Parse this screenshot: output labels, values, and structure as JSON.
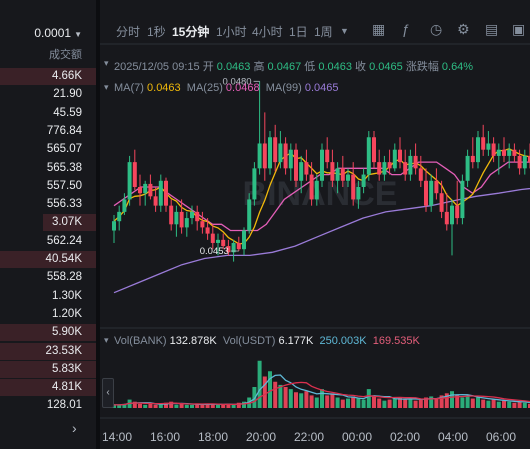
{
  "depth": {
    "precision": "0.0001",
    "volume_header": "成交额",
    "rows": [
      {
        "value": "4.66K",
        "bar": 1.0
      },
      {
        "value": "21.90",
        "bar": 0
      },
      {
        "value": "45.59",
        "bar": 0
      },
      {
        "value": "776.84",
        "bar": 0
      },
      {
        "value": "565.07",
        "bar": 0
      },
      {
        "value": "565.38",
        "bar": 0
      },
      {
        "value": "557.50",
        "bar": 0
      },
      {
        "value": "556.33",
        "bar": 0
      },
      {
        "value": "3.07K",
        "bar": 0.55
      },
      {
        "value": "562.24",
        "bar": 0
      },
      {
        "value": "40.54K",
        "bar": 1.0
      },
      {
        "value": "558.28",
        "bar": 0
      },
      {
        "value": "1.30K",
        "bar": 0
      },
      {
        "value": "1.20K",
        "bar": 0
      },
      {
        "value": "5.90K",
        "bar": 1.0
      },
      {
        "value": "23.53K",
        "bar": 1.0
      },
      {
        "value": "5.83K",
        "bar": 1.0
      },
      {
        "value": "4.81K",
        "bar": 1.0
      },
      {
        "value": "128.01",
        "bar": 0
      }
    ]
  },
  "toolbar": {
    "timeframes": [
      "分时",
      "1秒",
      "15分钟",
      "1小时",
      "4小时",
      "1日",
      "1周"
    ],
    "active": "15分钟",
    "icons": [
      "calendar-icon",
      "indicator-icon",
      "clock-icon",
      "settings-icon",
      "template-icon",
      "layout-icon",
      "fullscreen-icon"
    ]
  },
  "ohlc": {
    "date": "2025/12/05 09:15",
    "open_label": "开",
    "open": "0.0463",
    "high_label": "高",
    "high": "0.0467",
    "low_label": "低",
    "low": "0.0463",
    "close_label": "收",
    "close": "0.0465",
    "change_label": "涨跌幅",
    "change": "0.64%"
  },
  "ma": {
    "ma7_label": "MA(7)",
    "ma7": "0.0463",
    "ma25_label": "MA(25)",
    "ma25": "0.0468",
    "ma99_label": "MA(99)",
    "ma99": "0.0465"
  },
  "volume_info": {
    "bank_label": "Vol(BANK)",
    "bank": "132.878K",
    "usdt_label": "Vol(USDT)",
    "usdt": "6.177K",
    "ma1": "250.003K",
    "ma2": "169.535K"
  },
  "watermark": "BINANCE",
  "annotations": {
    "high_marker": "0.0480",
    "low_marker": "0.0453"
  },
  "time_axis": [
    "14:00",
    "16:00",
    "18:00",
    "20:00",
    "22:00",
    "00:00",
    "02:00",
    "04:00",
    "06:00"
  ],
  "colors": {
    "up": "#2ebd85",
    "down": "#f6465d",
    "ma7": "#f0b90b",
    "ma25": "#e35eb7",
    "ma99": "#9a7bd8",
    "vol_ma1": "#5fb8d6",
    "vol_ma2": "#d9304e"
  },
  "chart_data": {
    "type": "candlestick",
    "interval": "15m",
    "ylim": [
      0.044,
      0.0486
    ],
    "x_ticks": [
      "14:00",
      "16:00",
      "18:00",
      "20:00",
      "22:00",
      "00:00",
      "02:00",
      "04:00",
      "06:00"
    ],
    "candles": [
      [
        0.0456,
        0.04585,
        0.0454,
        0.04575,
        3
      ],
      [
        0.04575,
        0.046,
        0.0456,
        0.0459,
        3
      ],
      [
        0.0459,
        0.0462,
        0.04585,
        0.0461,
        4
      ],
      [
        0.0461,
        0.0468,
        0.046,
        0.0467,
        8
      ],
      [
        0.0467,
        0.0469,
        0.04625,
        0.0463,
        6
      ],
      [
        0.0463,
        0.0465,
        0.046,
        0.0462,
        4
      ],
      [
        0.0462,
        0.0464,
        0.046,
        0.04635,
        3
      ],
      [
        0.04635,
        0.0465,
        0.0461,
        0.04615,
        4
      ],
      [
        0.04615,
        0.0463,
        0.0459,
        0.046,
        3
      ],
      [
        0.046,
        0.0465,
        0.0459,
        0.0464,
        4
      ],
      [
        0.0464,
        0.04645,
        0.0459,
        0.046,
        5
      ],
      [
        0.046,
        0.0461,
        0.0456,
        0.0457,
        6
      ],
      [
        0.0457,
        0.046,
        0.0455,
        0.0459,
        3
      ],
      [
        0.0459,
        0.0461,
        0.04555,
        0.04565,
        4
      ],
      [
        0.04565,
        0.0459,
        0.0455,
        0.0458,
        3
      ],
      [
        0.0458,
        0.046,
        0.0457,
        0.0459,
        3
      ],
      [
        0.0459,
        0.046,
        0.0456,
        0.04575,
        4
      ],
      [
        0.04575,
        0.0459,
        0.04555,
        0.04565,
        3
      ],
      [
        0.04565,
        0.0458,
        0.04545,
        0.04555,
        4
      ],
      [
        0.04555,
        0.0457,
        0.0453,
        0.0454,
        4
      ],
      [
        0.0454,
        0.04555,
        0.0452,
        0.04545,
        3
      ],
      [
        0.04545,
        0.04555,
        0.0453,
        0.04535,
        3
      ],
      [
        0.04535,
        0.04545,
        0.0452,
        0.04525,
        4
      ],
      [
        0.04525,
        0.04545,
        0.0451,
        0.0454,
        3
      ],
      [
        0.0454,
        0.0455,
        0.04527,
        0.0453,
        5
      ],
      [
        0.0453,
        0.04565,
        0.0452,
        0.0456,
        6
      ],
      [
        0.0456,
        0.0462,
        0.04555,
        0.0461,
        10
      ],
      [
        0.0461,
        0.0467,
        0.046,
        0.0466,
        20
      ],
      [
        0.0466,
        0.048,
        0.0465,
        0.047,
        45
      ],
      [
        0.047,
        0.0475,
        0.0464,
        0.0466,
        30
      ],
      [
        0.0466,
        0.0472,
        0.0465,
        0.0471,
        35
      ],
      [
        0.0471,
        0.0473,
        0.04655,
        0.0467,
        25
      ],
      [
        0.0467,
        0.0472,
        0.0466,
        0.047,
        22
      ],
      [
        0.047,
        0.0471,
        0.0465,
        0.0466,
        20
      ],
      [
        0.0466,
        0.047,
        0.0464,
        0.0469,
        18
      ],
      [
        0.0469,
        0.047,
        0.0463,
        0.0464,
        15
      ],
      [
        0.0464,
        0.0468,
        0.0462,
        0.0467,
        14
      ],
      [
        0.0467,
        0.0469,
        0.0464,
        0.0465,
        16
      ],
      [
        0.0465,
        0.0467,
        0.046,
        0.0461,
        12
      ],
      [
        0.0461,
        0.0465,
        0.046,
        0.0464,
        10
      ],
      [
        0.0464,
        0.047,
        0.0463,
        0.0469,
        18
      ],
      [
        0.0469,
        0.0471,
        0.0466,
        0.0467,
        12
      ],
      [
        0.0467,
        0.0469,
        0.0463,
        0.0464,
        14
      ],
      [
        0.0464,
        0.0467,
        0.0462,
        0.0466,
        10
      ],
      [
        0.0466,
        0.0468,
        0.0463,
        0.0464,
        8
      ],
      [
        0.0464,
        0.0466,
        0.0463,
        0.0465,
        9
      ],
      [
        0.0465,
        0.0467,
        0.046,
        0.0461,
        11
      ],
      [
        0.0461,
        0.0464,
        0.04595,
        0.0463,
        9
      ],
      [
        0.0463,
        0.0466,
        0.0462,
        0.0465,
        8
      ],
      [
        0.0465,
        0.0472,
        0.0464,
        0.0471,
        18
      ],
      [
        0.0471,
        0.0472,
        0.0466,
        0.0467,
        12
      ],
      [
        0.0467,
        0.0469,
        0.0464,
        0.0465,
        9
      ],
      [
        0.0465,
        0.0468,
        0.0464,
        0.0467,
        7
      ],
      [
        0.0467,
        0.0469,
        0.0465,
        0.0466,
        8
      ],
      [
        0.0466,
        0.047,
        0.04655,
        0.0469,
        9
      ],
      [
        0.0469,
        0.0471,
        0.0466,
        0.0467,
        10
      ],
      [
        0.0467,
        0.0469,
        0.0464,
        0.0465,
        8
      ],
      [
        0.0465,
        0.0469,
        0.0464,
        0.0468,
        9
      ],
      [
        0.0468,
        0.047,
        0.0465,
        0.0466,
        7
      ],
      [
        0.0466,
        0.0468,
        0.0463,
        0.0464,
        8
      ],
      [
        0.0464,
        0.0466,
        0.0459,
        0.046,
        10
      ],
      [
        0.046,
        0.0465,
        0.0459,
        0.0464,
        11
      ],
      [
        0.0464,
        0.0466,
        0.0461,
        0.0462,
        9
      ],
      [
        0.0462,
        0.0464,
        0.0458,
        0.0459,
        12
      ],
      [
        0.0459,
        0.0462,
        0.0456,
        0.0457,
        14
      ],
      [
        0.0457,
        0.0461,
        0.0452,
        0.046,
        16
      ],
      [
        0.046,
        0.0464,
        0.0457,
        0.0458,
        12
      ],
      [
        0.0458,
        0.0465,
        0.0457,
        0.0464,
        10
      ],
      [
        0.0464,
        0.0469,
        0.0463,
        0.0468,
        11
      ],
      [
        0.0468,
        0.0471,
        0.0466,
        0.0467,
        9
      ],
      [
        0.0467,
        0.0472,
        0.0466,
        0.0471,
        10
      ],
      [
        0.0471,
        0.0473,
        0.0468,
        0.0469,
        8
      ],
      [
        0.0469,
        0.0472,
        0.0468,
        0.047,
        7
      ],
      [
        0.047,
        0.0471,
        0.0467,
        0.0468,
        8
      ],
      [
        0.0468,
        0.047,
        0.0465,
        0.0469,
        6
      ],
      [
        0.0469,
        0.0471,
        0.0467,
        0.0468,
        7
      ],
      [
        0.0468,
        0.047,
        0.0466,
        0.0469,
        6
      ],
      [
        0.0469,
        0.047,
        0.0467,
        0.0468,
        5
      ],
      [
        0.0468,
        0.0469,
        0.0465,
        0.0466,
        6
      ],
      [
        0.0466,
        0.0469,
        0.0465,
        0.0468,
        5
      ],
      [
        0.0468,
        0.047,
        0.0466,
        0.0467,
        4
      ]
    ],
    "ma25": [
      0.046,
      0.0461,
      0.0462,
      0.0463,
      0.0463,
      0.0463,
      0.0462,
      0.0461,
      0.046,
      0.0459,
      0.0458,
      0.0457,
      0.0457,
      0.0456,
      0.0456,
      0.0456,
      0.0456,
      0.0457,
      0.0459,
      0.0461,
      0.0462,
      0.0463,
      0.0464,
      0.0465,
      0.0465,
      0.0466,
      0.0466,
      0.0466,
      0.0466,
      0.0466,
      0.0466,
      0.0465,
      0.0465,
      0.0466,
      0.0467,
      0.0467,
      0.0467,
      0.0466,
      0.0465,
      0.0463,
      0.0462,
      0.0463,
      0.0465,
      0.0466,
      0.0467,
      0.0467,
      0.0467,
      0.0467
    ],
    "ma99": [
      0.0446,
      0.04475,
      0.0449,
      0.04505,
      0.04515,
      0.0452,
      0.0452,
      0.04525,
      0.04535,
      0.0455,
      0.04565,
      0.0458,
      0.0459,
      0.04595,
      0.046,
      0.04608,
      0.04615,
      0.0462,
      0.04626,
      0.0463
    ]
  }
}
